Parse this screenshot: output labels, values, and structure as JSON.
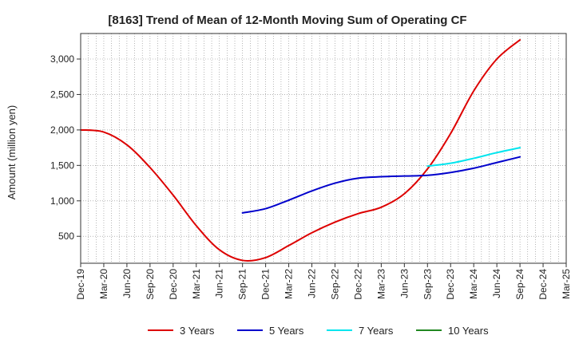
{
  "chart_data": {
    "type": "line",
    "title": "[8163]  Trend of Mean of 12-Month Moving Sum of Operating CF",
    "xlabel": "",
    "ylabel": "Amount (million yen)",
    "ylim": [
      120,
      3360
    ],
    "yticks": [
      500,
      1000,
      1500,
      2000,
      2500,
      3000
    ],
    "ytick_labels": [
      "500",
      "1,000",
      "1,500",
      "2,000",
      "2,500",
      "3,000"
    ],
    "categories": [
      "Dec-19",
      "Mar-20",
      "Jun-20",
      "Sep-20",
      "Dec-20",
      "Mar-21",
      "Jun-21",
      "Sep-21",
      "Dec-21",
      "Mar-22",
      "Jun-22",
      "Sep-22",
      "Dec-22",
      "Mar-23",
      "Jun-23",
      "Sep-23",
      "Dec-23",
      "Mar-24",
      "Jun-24",
      "Sep-24",
      "Dec-24",
      "Mar-25"
    ],
    "grid": true,
    "legend_position": "bottom",
    "series": [
      {
        "name": "3 Years",
        "color": "#dd0000",
        "values": [
          2000,
          1970,
          1790,
          1470,
          1080,
          650,
          310,
          160,
          200,
          370,
          550,
          700,
          820,
          910,
          1100,
          1450,
          1950,
          2550,
          3000,
          3270,
          null,
          null
        ]
      },
      {
        "name": "5 Years",
        "color": "#0000cc",
        "values": [
          null,
          null,
          null,
          null,
          null,
          null,
          null,
          830,
          890,
          1010,
          1140,
          1250,
          1320,
          1340,
          1350,
          1360,
          1400,
          1460,
          1540,
          1620,
          null,
          null
        ]
      },
      {
        "name": "7 Years",
        "color": "#00e5ee",
        "values": [
          null,
          null,
          null,
          null,
          null,
          null,
          null,
          null,
          null,
          null,
          null,
          null,
          null,
          null,
          null,
          1490,
          1530,
          1600,
          1680,
          1750,
          null,
          null
        ]
      },
      {
        "name": "10 Years",
        "color": "#228822",
        "values": [
          null,
          null,
          null,
          null,
          null,
          null,
          null,
          null,
          null,
          null,
          null,
          null,
          null,
          null,
          null,
          null,
          null,
          null,
          null,
          null,
          null,
          null
        ]
      }
    ]
  }
}
